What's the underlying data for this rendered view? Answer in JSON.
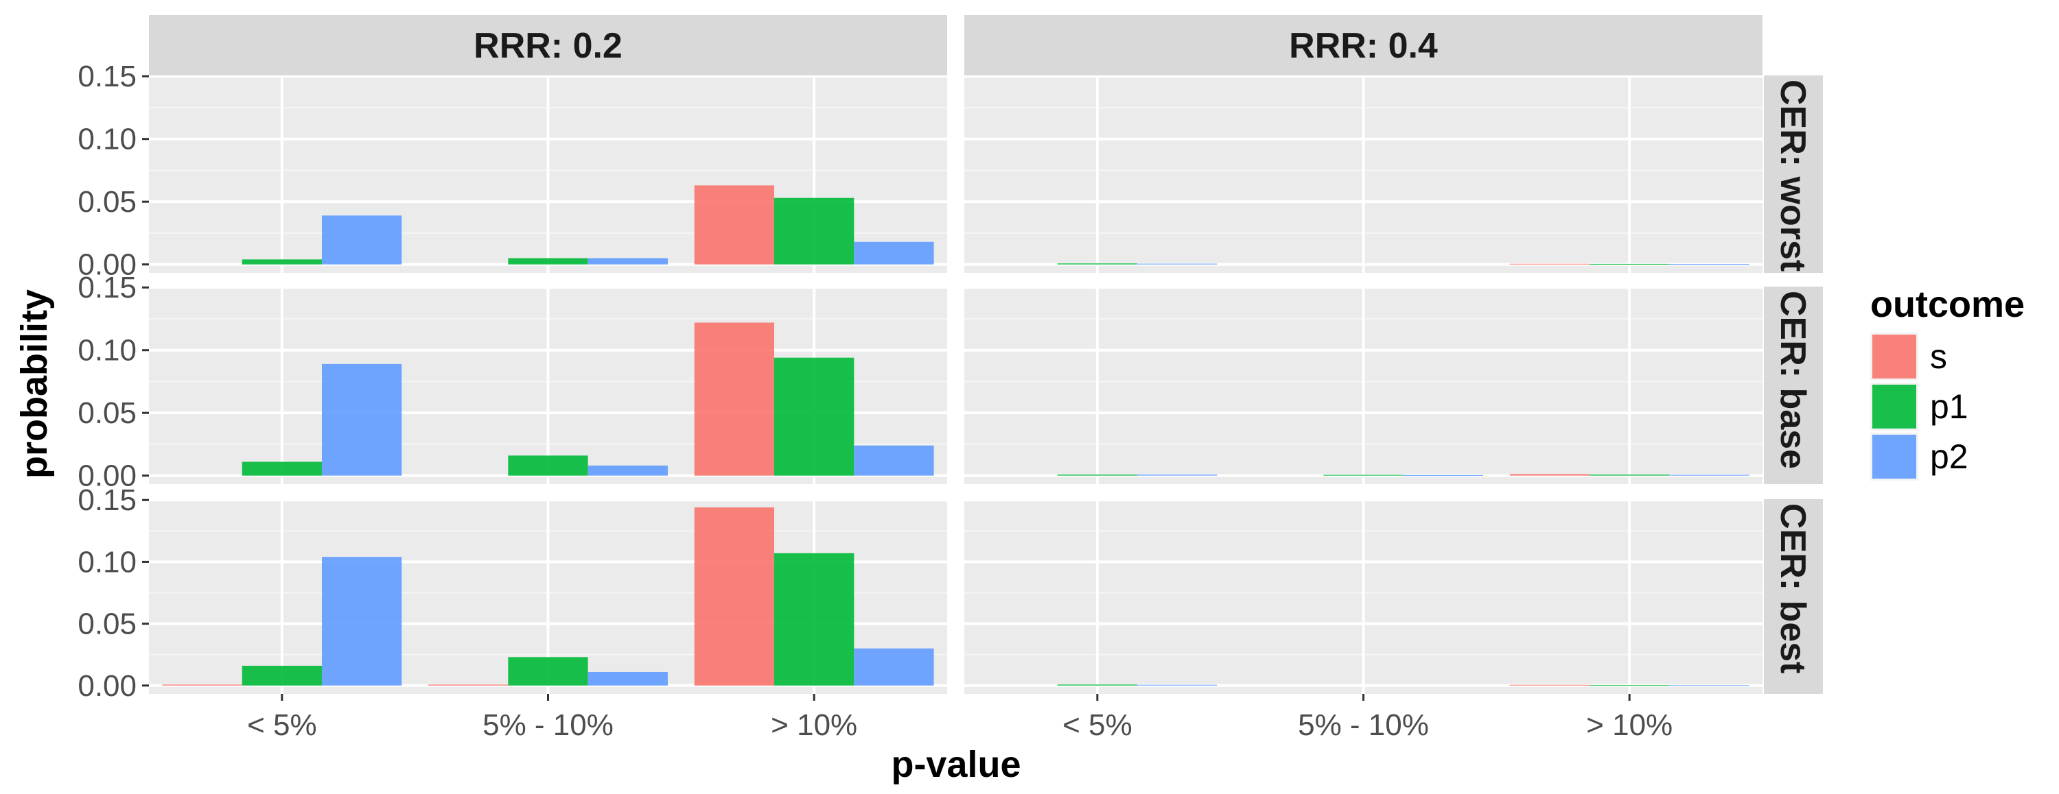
{
  "chart_data": {
    "type": "bar",
    "facet_cols": [
      "RRR: 0.2",
      "RRR: 0.4"
    ],
    "facet_rows": [
      "CER: worst",
      "CER: base",
      "CER: best"
    ],
    "categories": [
      "< 5%",
      "5% - 10%",
      "> 10%"
    ],
    "xlabel": "p-value",
    "ylabel": "probability",
    "ylim": [
      0,
      0.15
    ],
    "yticks": [
      "0.00",
      "0.05",
      "0.10",
      "0.15"
    ],
    "grid": true,
    "legend": {
      "title": "outcome",
      "position": "right",
      "entries": [
        {
          "name": "s",
          "color": "#F8766D"
        },
        {
          "name": "p1",
          "color": "#00BA38"
        },
        {
          "name": "p2",
          "color": "#619CFF"
        }
      ]
    },
    "panels": [
      {
        "col": "RRR: 0.2",
        "row": "CER: worst",
        "series": [
          {
            "name": "s",
            "values": [
              0,
              0,
              0.063
            ]
          },
          {
            "name": "p1",
            "values": [
              0.004,
              0.005,
              0.053
            ]
          },
          {
            "name": "p2",
            "values": [
              0.039,
              0.005,
              0.018
            ]
          }
        ]
      },
      {
        "col": "RRR: 0.4",
        "row": "CER: worst",
        "series": [
          {
            "name": "s",
            "values": [
              0,
              0,
              0.0005
            ]
          },
          {
            "name": "p1",
            "values": [
              0.0008,
              0,
              0.0004
            ]
          },
          {
            "name": "p2",
            "values": [
              0.0006,
              0,
              0.0003
            ]
          }
        ]
      },
      {
        "col": "RRR: 0.2",
        "row": "CER: base",
        "series": [
          {
            "name": "s",
            "values": [
              0,
              0,
              0.122
            ]
          },
          {
            "name": "p1",
            "values": [
              0.011,
              0.016,
              0.094
            ]
          },
          {
            "name": "p2",
            "values": [
              0.089,
              0.008,
              0.024
            ]
          }
        ]
      },
      {
        "col": "RRR: 0.4",
        "row": "CER: base",
        "series": [
          {
            "name": "s",
            "values": [
              0,
              0,
              0.0012
            ]
          },
          {
            "name": "p1",
            "values": [
              0.0008,
              0.0006,
              0.0008
            ]
          },
          {
            "name": "p2",
            "values": [
              0.0008,
              0.0004,
              0.0006
            ]
          }
        ]
      },
      {
        "col": "RRR: 0.2",
        "row": "CER: best",
        "series": [
          {
            "name": "s",
            "values": [
              0.0008,
              0.0008,
              0.144
            ]
          },
          {
            "name": "p1",
            "values": [
              0.016,
              0.023,
              0.107
            ]
          },
          {
            "name": "p2",
            "values": [
              0.104,
              0.011,
              0.03
            ]
          }
        ]
      },
      {
        "col": "RRR: 0.4",
        "row": "CER: best",
        "series": [
          {
            "name": "s",
            "values": [
              0,
              0,
              0.0006
            ]
          },
          {
            "name": "p1",
            "values": [
              0.0008,
              0,
              0.0004
            ]
          },
          {
            "name": "p2",
            "values": [
              0.0006,
              0,
              0.0003
            ]
          }
        ]
      }
    ]
  }
}
